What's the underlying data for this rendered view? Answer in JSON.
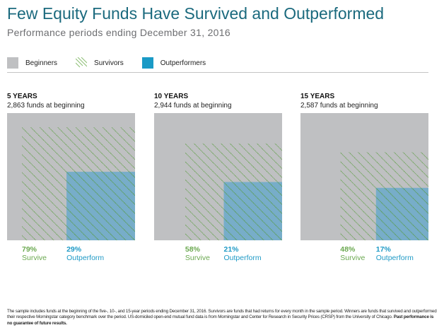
{
  "header": {
    "title": "Few Equity Funds Have Survived and Outperformed",
    "subtitle": "Performance periods ending December 31, 2016"
  },
  "legend": [
    {
      "label": "Beginners",
      "style": "solid",
      "color": "#bfc0c2"
    },
    {
      "label": "Survivors",
      "style": "hatch",
      "color": "#6aa84f"
    },
    {
      "label": "Outperformers",
      "style": "solid",
      "color": "#1a9ac6"
    }
  ],
  "colors": {
    "beginners": "#bfc0c2",
    "survivors_hatch": "#5e9e45",
    "outperformers_overlay": "#5ca5cc",
    "survive_text": "#6aa84f",
    "outperform_text": "#1f9ac6"
  },
  "chart_data": {
    "type": "area-proportional squares",
    "title": "Few Equity Funds Have Survived and Outperformed",
    "subtitle": "Performance periods ending December 31, 2016",
    "legend": [
      "Beginners",
      "Survivors",
      "Outperformers"
    ],
    "legend_position": "top-left",
    "panels": [
      {
        "label": "5 YEARS",
        "funds_text": "2,863 funds at beginning",
        "funds": 2863,
        "survive_pct": 79,
        "outperform_pct": 29,
        "survive_text": "79%",
        "outperform_text": "29%",
        "survive_label": "Survive",
        "outperform_label": "Outperform"
      },
      {
        "label": "10 YEARS",
        "funds_text": "2,944 funds at beginning",
        "funds": 2944,
        "survive_pct": 58,
        "outperform_pct": 21,
        "survive_text": "58%",
        "outperform_text": "21%",
        "survive_label": "Survive",
        "outperform_label": "Outperform"
      },
      {
        "label": "15 YEARS",
        "funds_text": "2,587 funds at beginning",
        "funds": 2587,
        "survive_pct": 48,
        "outperform_pct": 17,
        "survive_text": "48%",
        "outperform_text": "17%",
        "survive_label": "Survive",
        "outperform_label": "Outperform"
      }
    ]
  },
  "footer": {
    "text": "The sample includes funds at the beginning of the five-, 10-, and 15-year periods ending December 31, 2016. Survivors are funds that had returns for every month in the sample period. Winners are funds that survived and outperformed their respective Morningstar category benchmark over the period. US-domiciled open-end mutual fund data is from Morningstar and Center for Research in Security Prices (CRSP) from the University of Chicago. ",
    "bold": "Past performance is no guarantee of future results."
  }
}
